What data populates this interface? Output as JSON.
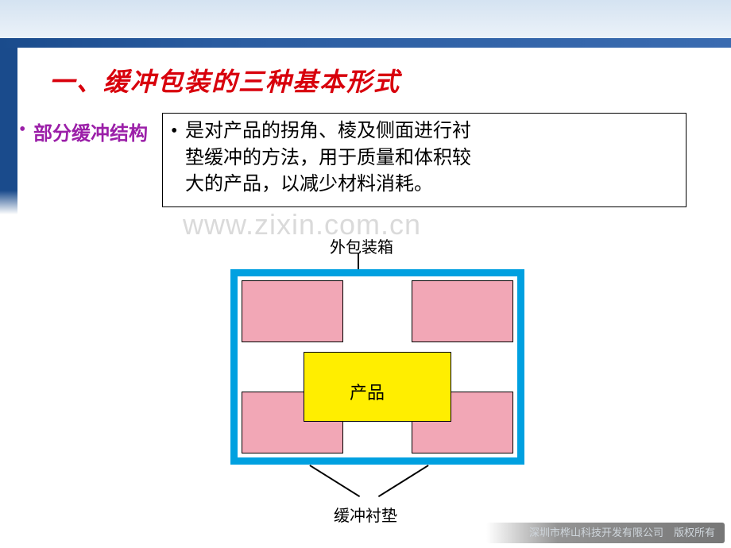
{
  "title": "一、缓冲包装的三种基本形式",
  "bullet": "•",
  "sub_heading": "部分缓冲结构",
  "desc": {
    "dot": "•",
    "l1": "是对产品的拐角、棱及侧面进行衬",
    "l2": "垫缓冲的方法，用于质量和体积较",
    "l3": "大的产品，以减少材料消耗。"
  },
  "watermark": "www.zixin.com.cn",
  "diagram": {
    "label_top": "外包装箱",
    "label_product": "产品",
    "label_bottom": "缓冲衬垫",
    "colors": {
      "outer_box": "#00a0e0",
      "pad": "#f2a7b6",
      "product": "#ffee00",
      "border": "#000000",
      "bg": "#ffffff"
    }
  },
  "footer": "深圳市桦山科技开发有限公司　版权所有",
  "theme": {
    "title_color": "#d8000c",
    "sub_color": "#9b1fa8",
    "banner_accent": "#1a4b8c"
  }
}
